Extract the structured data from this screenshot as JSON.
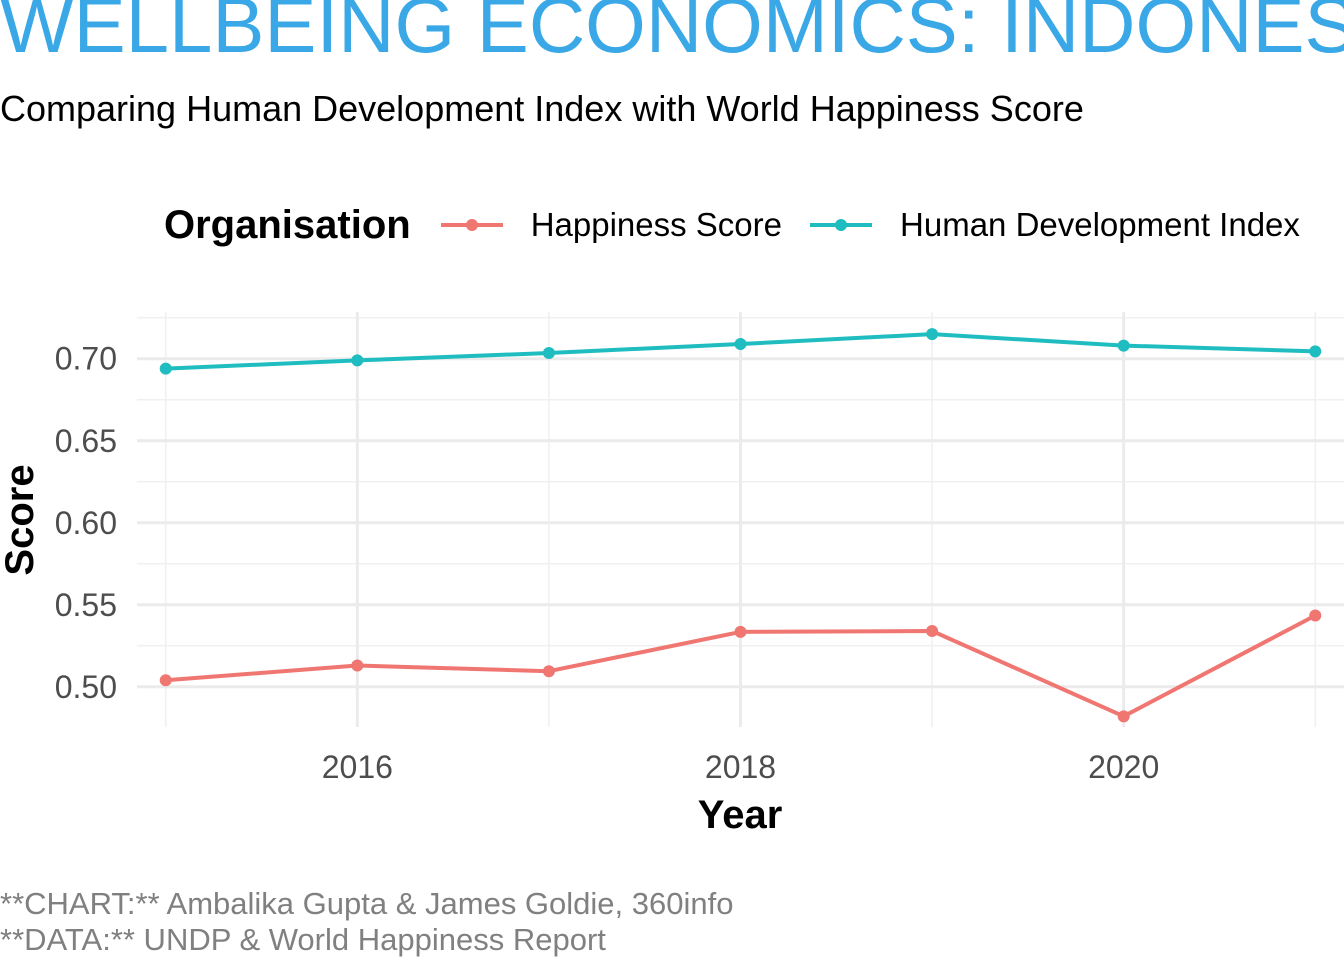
{
  "chart_data": {
    "type": "line",
    "title": "WELLBEING ECONOMICS: INDONES",
    "subtitle": "Comparing Human Development Index with World Happiness Score",
    "xlabel": "Year",
    "ylabel": "Score",
    "legend_title": "Organisation",
    "legend_position": "top",
    "grid": true,
    "x": [
      2015,
      2016,
      2017,
      2018,
      2019,
      2020,
      2021
    ],
    "x_ticks": [
      2016,
      2018,
      2020
    ],
    "y_ticks": [
      0.5,
      0.55,
      0.6,
      0.65,
      0.7
    ],
    "xlim": [
      2014.85,
      2021.15
    ],
    "ylim": [
      0.4755,
      0.7285
    ],
    "series": [
      {
        "name": "Happiness Score",
        "color": "#f07672",
        "values": [
          0.504,
          0.513,
          0.5095,
          0.5335,
          0.534,
          0.482,
          0.5435
        ]
      },
      {
        "name": "Human Development Index",
        "color": "#1fbdc0",
        "values": [
          0.694,
          0.699,
          0.7035,
          0.709,
          0.715,
          0.708,
          0.7045
        ]
      }
    ]
  },
  "caption": {
    "line1": "**CHART:** Ambalika Gupta & James Goldie, 360info",
    "line2": "**DATA:** UNDP & World Happiness Report"
  }
}
